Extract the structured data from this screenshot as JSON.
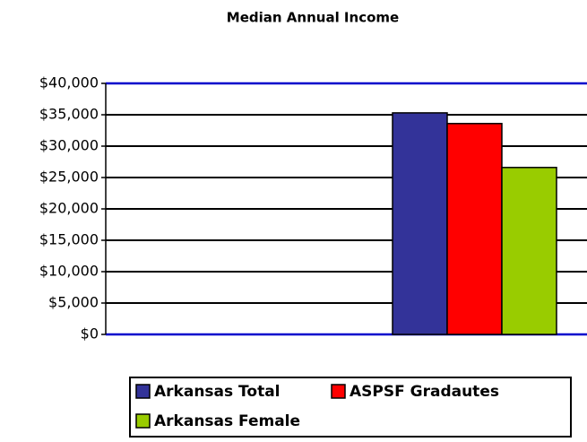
{
  "chart_data": {
    "type": "bar",
    "title": "Median Annual Income",
    "categories": [
      null
    ],
    "series": [
      {
        "name": "Arkansas Total",
        "color": "#333399",
        "values": [
          35300
        ]
      },
      {
        "name": "ASPSF Gradautes",
        "color": "#ff0000",
        "values": [
          33600
        ]
      },
      {
        "name": "Arkansas Female",
        "color": "#99cc00",
        "values": [
          26600
        ]
      }
    ],
    "ylim": [
      0,
      40000
    ],
    "yticks": [
      {
        "value": 0,
        "label": "$0"
      },
      {
        "value": 5000,
        "label": "$5,000"
      },
      {
        "value": 10000,
        "label": "$10,000"
      },
      {
        "value": 15000,
        "label": "$15,000"
      },
      {
        "value": 20000,
        "label": "$20,000"
      },
      {
        "value": 25000,
        "label": "$25,000"
      },
      {
        "value": 30000,
        "label": "$30,000"
      },
      {
        "value": 35000,
        "label": "$35,000"
      },
      {
        "value": 40000,
        "label": "$40,000"
      }
    ],
    "grid": true,
    "legend": "bottom"
  }
}
